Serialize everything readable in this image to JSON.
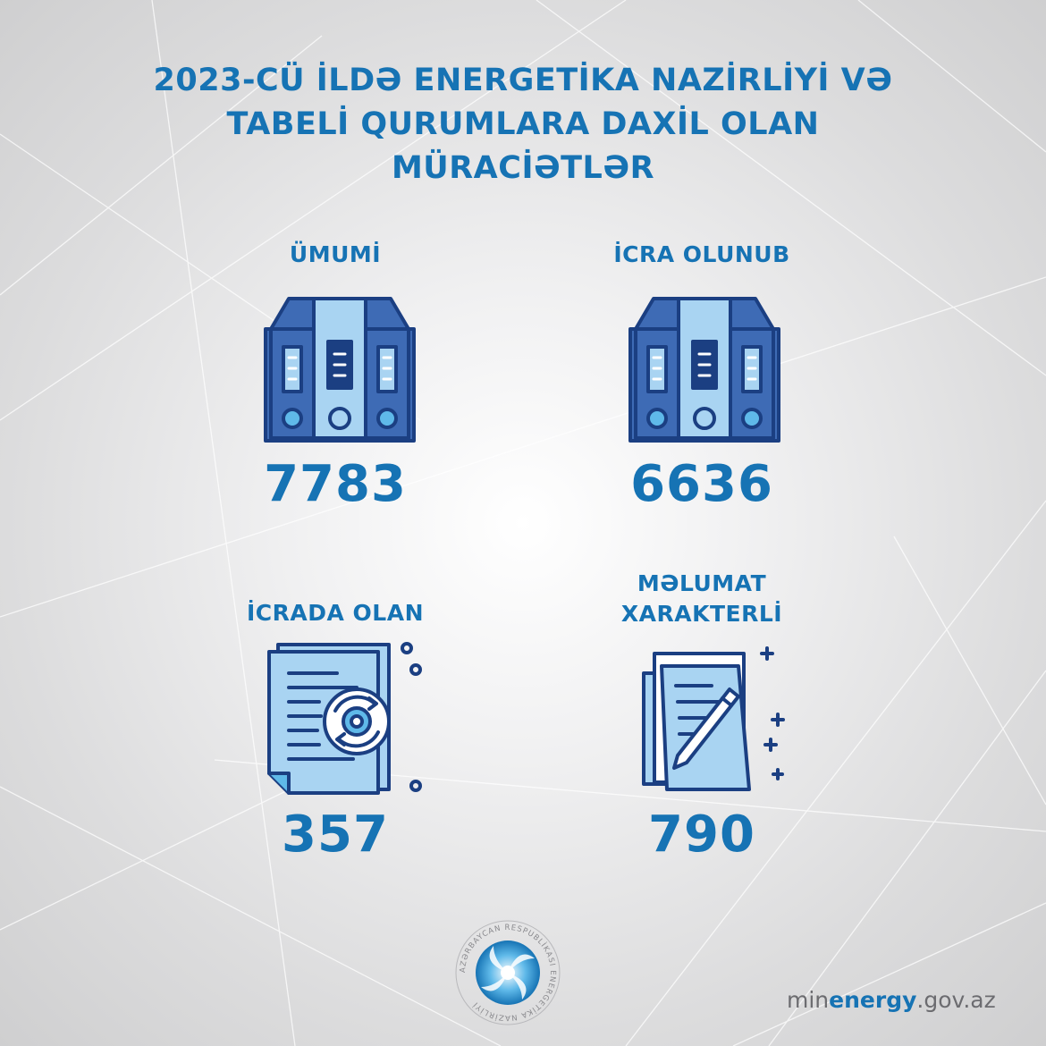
{
  "title": {
    "line1": "2023-CÜ İLDƏ ENERGETİKA NAZİRLİYİ VƏ",
    "line2": "TABELİ QURUMLARA DAXİL OLAN",
    "line3": "MÜRACİƏTLƏR"
  },
  "stats": {
    "total": {
      "label": "ÜMUMİ",
      "value": "7783",
      "icon": "binders-icon"
    },
    "completed": {
      "label": "İCRA OLUNUB",
      "value": "6636",
      "icon": "binders-icon"
    },
    "in_progress": {
      "label": "İCRADA OLAN",
      "value": "357",
      "icon": "document-gear-icon"
    },
    "informational": {
      "label_line1": "MƏLUMAT",
      "label_line2": "XARAKTERLİ",
      "value": "790",
      "icon": "document-pen-icon"
    }
  },
  "logo": {
    "ring_text": "AZƏRBAYCAN RESPUBLİKASI ENERGETİKA NAZİRLİYİ",
    "icon": "ministry-seal-icon"
  },
  "website": {
    "prefix": "min",
    "highlight": "energy",
    "suffix": ".gov.az"
  },
  "colors": {
    "primary_blue": "#1673b4",
    "dark_blue": "#1b3f82",
    "mid_blue": "#3e6bb5",
    "light_blue": "#a9d4f2",
    "sky_blue": "#5fb9e9",
    "text_gray": "#6c6c70"
  }
}
